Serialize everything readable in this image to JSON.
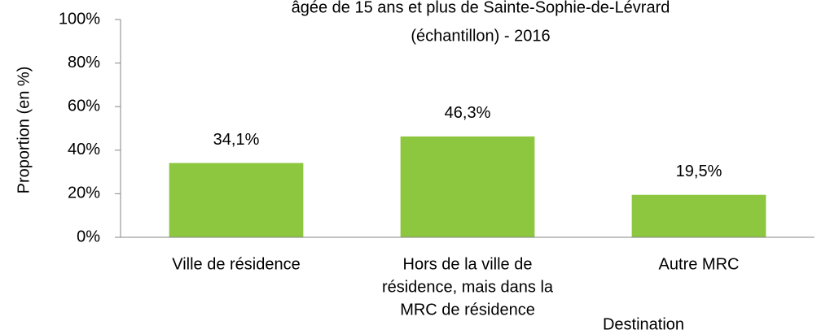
{
  "chart_data": {
    "type": "bar",
    "title": [
      "âgée de 15 ans et plus de Sainte-Sophie-de-Lévrard",
      "(échantillon) - 2016"
    ],
    "y_label": "Proportion (en %)",
    "x_label": "Destination",
    "categories": [
      [
        "Ville de résidence"
      ],
      [
        "Hors de la ville de",
        "résidence, mais dans la",
        "MRC de résidence"
      ],
      [
        "Autre MRC"
      ]
    ],
    "values": [
      34.1,
      46.3,
      19.5
    ],
    "value_labels": [
      "34,1%",
      "46,3%",
      "19,5%"
    ],
    "color": "#8dc63f",
    "ylim": [
      0,
      100
    ],
    "yticks": [
      {
        "value": 0,
        "label": "0%"
      },
      {
        "value": 20,
        "label": "20%"
      },
      {
        "value": 40,
        "label": "40%"
      },
      {
        "value": 60,
        "label": "60%"
      },
      {
        "value": 80,
        "label": "80%"
      },
      {
        "value": 100,
        "label": "100%"
      }
    ],
    "grid": false
  }
}
